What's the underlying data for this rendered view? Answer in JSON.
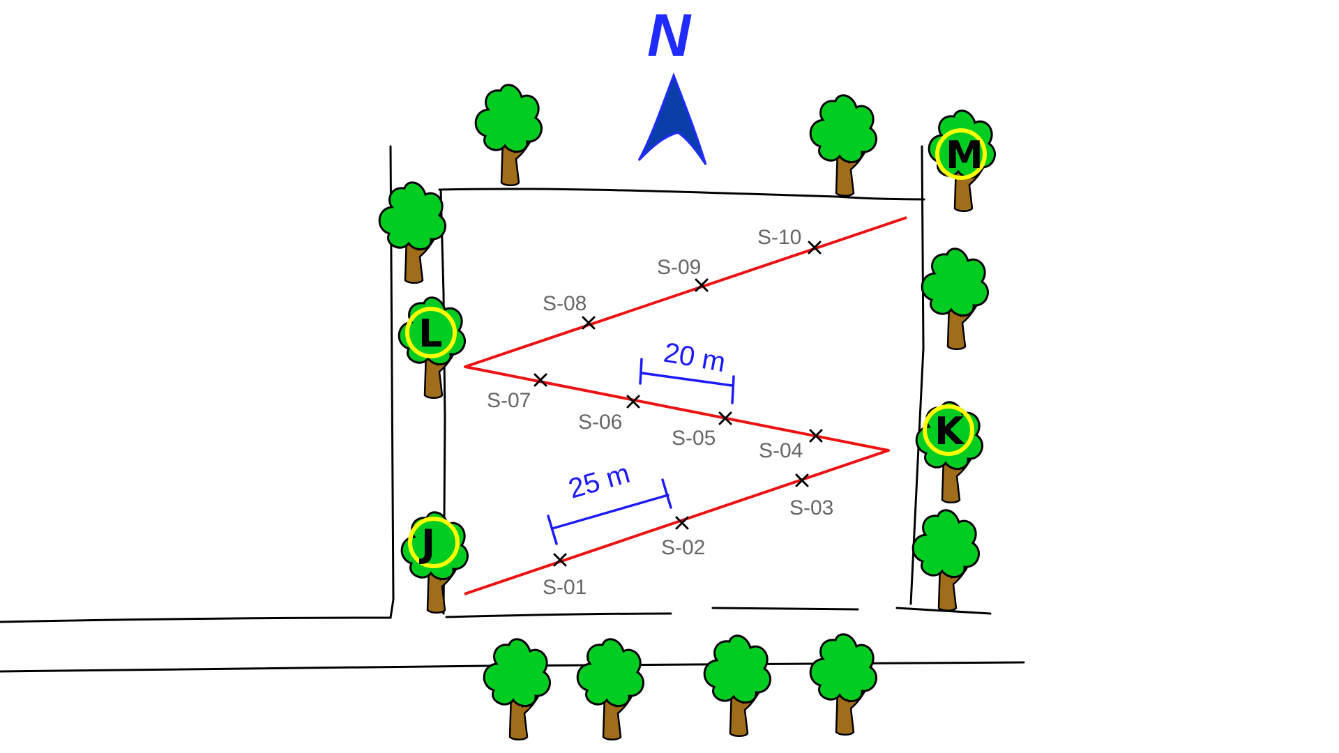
{
  "north": {
    "label": "N",
    "arrow_color": "#0a3ea8",
    "label_color": "#1f2bff"
  },
  "markers": [
    {
      "id": "marker-m",
      "label": "M"
    },
    {
      "id": "marker-l",
      "label": "L"
    },
    {
      "id": "marker-k",
      "label": "K"
    },
    {
      "id": "marker-j",
      "label": "J"
    }
  ],
  "stations": [
    "S-01",
    "S-02",
    "S-03",
    "S-04",
    "S-05",
    "S-06",
    "S-07",
    "S-08",
    "S-09",
    "S-10"
  ],
  "scale_bars": [
    {
      "id": "scale-25",
      "label": "25 m"
    },
    {
      "id": "scale-20",
      "label": "20 m"
    }
  ],
  "colors": {
    "path": "#ee1111",
    "scale": "#1a1aff",
    "foliage": "#00cc22",
    "trunk": "#a06d1a",
    "marker_ring": "#ffff00"
  }
}
